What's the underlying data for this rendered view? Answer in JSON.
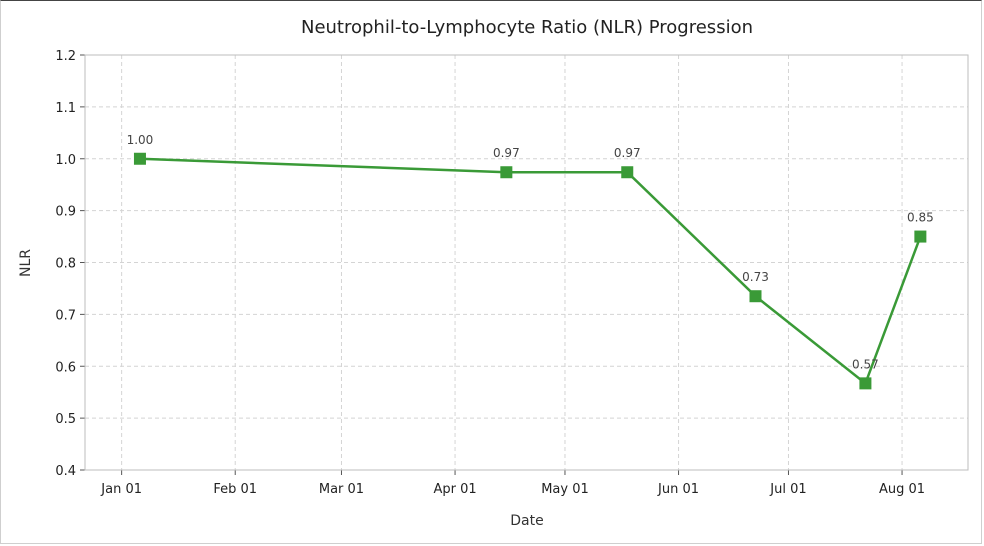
{
  "chart_data": {
    "type": "line",
    "title": "Neutrophil-to-Lymphocyte Ratio (NLR) Progression",
    "xlabel": "Date",
    "ylabel": "NLR",
    "x_ticks": [
      "Jan 01",
      "Feb 01",
      "Mar 01",
      "Apr 01",
      "May 01",
      "Jun 01",
      "Jul 01",
      "Aug 01"
    ],
    "y_ticks": [
      "0.4",
      "0.5",
      "0.6",
      "0.7",
      "0.8",
      "0.9",
      "1.0",
      "1.1",
      "1.2"
    ],
    "ylim": [
      0.4,
      1.2
    ],
    "xlim": [
      "2023-12-22",
      "2023-08-19"
    ],
    "grid": true,
    "series": [
      {
        "color": "#3a9a37",
        "marker": "square",
        "points": [
          {
            "x": "2024-01-06",
            "y": 1.0,
            "label": "1.00"
          },
          {
            "x": "2024-04-15",
            "y": 0.974,
            "label": "0.97"
          },
          {
            "x": "2024-05-18",
            "y": 0.974,
            "label": "0.97"
          },
          {
            "x": "2024-06-22",
            "y": 0.735,
            "label": "0.73"
          },
          {
            "x": "2024-07-22",
            "y": 0.567,
            "label": "0.57"
          },
          {
            "x": "2024-08-06",
            "y": 0.85,
            "label": "0.85"
          }
        ]
      }
    ]
  }
}
